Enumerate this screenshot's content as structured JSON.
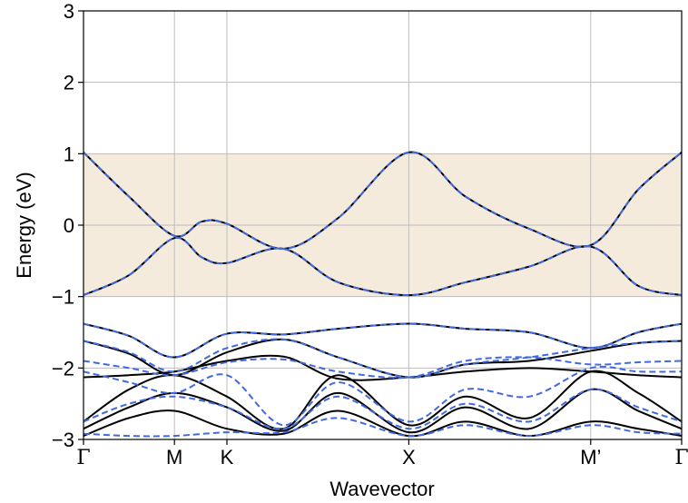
{
  "chart_data": {
    "type": "line",
    "xlabel": "Wavevector",
    "ylabel": "Energy (eV)",
    "ylim": [
      -3,
      3
    ],
    "yticks": [
      "3",
      "2",
      "1",
      "0",
      "−1",
      "−2",
      "−3"
    ],
    "ytick_values": [
      3,
      2,
      1,
      0,
      -1,
      -2,
      -3
    ],
    "high_symmetry_points": [
      {
        "label": "Γ",
        "x": 0.0
      },
      {
        "label": "M",
        "x": 1.0
      },
      {
        "label": "K",
        "x": 1.577
      },
      {
        "label": "X",
        "x": 3.577
      },
      {
        "label": "M’",
        "x": 5.577
      },
      {
        "label": "Γ",
        "x": 6.577
      }
    ],
    "grid": true,
    "shaded_window": {
      "y_min": -1,
      "y_max": 1,
      "color": "#f4ebdd"
    },
    "colors": {
      "solid": "#000000",
      "dashed": "#4169e1",
      "grid": "#bdbdbd"
    },
    "series": [
      {
        "style": "solid",
        "x": [
          0,
          0.5,
          1,
          1.3,
          1.577,
          2.2,
          2.8,
          3.577,
          4.2,
          4.9,
          5.577,
          6.1,
          6.577
        ],
        "values": [
          1.02,
          0.4,
          -0.15,
          0.05,
          0.02,
          -0.33,
          0.1,
          1.02,
          0.4,
          -0.05,
          -0.28,
          0.5,
          1.02
        ]
      },
      {
        "style": "solid",
        "x": [
          0,
          0.5,
          1,
          1.3,
          1.577,
          2.2,
          2.8,
          3.577,
          4.2,
          4.9,
          5.577,
          6.1,
          6.577
        ],
        "values": [
          -0.98,
          -0.7,
          -0.18,
          -0.45,
          -0.53,
          -0.33,
          -0.8,
          -0.98,
          -0.8,
          -0.58,
          -0.3,
          -0.85,
          -0.98
        ]
      },
      {
        "style": "solid",
        "x": [
          0,
          0.5,
          1,
          1.577,
          2.2,
          2.8,
          3.577,
          4.2,
          4.9,
          5.577,
          6.1,
          6.577
        ],
        "values": [
          -1.38,
          -1.55,
          -1.85,
          -1.52,
          -1.53,
          -1.45,
          -1.38,
          -1.45,
          -1.5,
          -1.72,
          -1.5,
          -1.38
        ]
      },
      {
        "style": "solid",
        "x": [
          0,
          0.5,
          1,
          1.577,
          2.2,
          2.8,
          3.577,
          4.2,
          4.9,
          5.577,
          6.1,
          6.577
        ],
        "values": [
          -1.62,
          -1.8,
          -2.1,
          -1.78,
          -1.6,
          -1.85,
          -2.13,
          -1.95,
          -1.9,
          -1.76,
          -1.65,
          -1.62
        ]
      },
      {
        "style": "solid",
        "x": [
          0,
          0.5,
          1,
          1.577,
          2.2,
          2.8,
          3.577,
          4.2,
          4.9,
          5.577,
          6.1,
          6.577
        ],
        "values": [
          -2.13,
          -2.1,
          -2.05,
          -1.9,
          -1.84,
          -2.15,
          -2.13,
          -2.05,
          -2.0,
          -2.05,
          -2.1,
          -2.13
        ]
      },
      {
        "style": "solid",
        "x": [
          0,
          0.5,
          1,
          1.577,
          2.2,
          2.8,
          3.577,
          4.2,
          4.9,
          5.577,
          6.1,
          6.577
        ],
        "values": [
          -2.75,
          -2.3,
          -2.1,
          -2.4,
          -2.85,
          -2.1,
          -2.8,
          -2.4,
          -2.7,
          -2.05,
          -2.35,
          -2.75
        ]
      },
      {
        "style": "solid",
        "x": [
          0,
          0.5,
          1,
          1.577,
          2.2,
          2.8,
          3.577,
          4.2,
          4.9,
          5.577,
          6.1,
          6.577
        ],
        "values": [
          -2.85,
          -2.55,
          -2.35,
          -2.55,
          -2.88,
          -2.35,
          -2.9,
          -2.55,
          -2.85,
          -2.3,
          -2.6,
          -2.85
        ]
      },
      {
        "style": "solid",
        "x": [
          0,
          0.5,
          1,
          1.577,
          2.2,
          2.8,
          3.577,
          4.2,
          4.9,
          5.577,
          6.1,
          6.577
        ],
        "values": [
          -2.95,
          -2.7,
          -2.6,
          -2.85,
          -2.92,
          -2.6,
          -2.95,
          -2.75,
          -2.95,
          -2.75,
          -2.85,
          -2.95
        ]
      },
      {
        "style": "dashed",
        "x": [
          0,
          0.5,
          1,
          1.3,
          1.577,
          2.2,
          2.8,
          3.577,
          4.2,
          4.9,
          5.577,
          6.1,
          6.577
        ],
        "values": [
          1.02,
          0.4,
          -0.15,
          0.05,
          0.02,
          -0.33,
          0.1,
          1.02,
          0.4,
          -0.05,
          -0.28,
          0.5,
          1.02
        ]
      },
      {
        "style": "dashed",
        "x": [
          0,
          0.5,
          1,
          1.3,
          1.577,
          2.2,
          2.8,
          3.577,
          4.2,
          4.9,
          5.577,
          6.1,
          6.577
        ],
        "values": [
          -0.98,
          -0.7,
          -0.18,
          -0.45,
          -0.53,
          -0.33,
          -0.8,
          -0.98,
          -0.8,
          -0.58,
          -0.3,
          -0.85,
          -0.98
        ]
      },
      {
        "style": "dashed",
        "x": [
          0,
          0.5,
          1,
          1.577,
          2.2,
          2.8,
          3.577,
          4.2,
          4.9,
          5.577,
          6.1,
          6.577
        ],
        "values": [
          -1.38,
          -1.55,
          -1.85,
          -1.52,
          -1.53,
          -1.45,
          -1.38,
          -1.45,
          -1.5,
          -1.72,
          -1.5,
          -1.38
        ]
      },
      {
        "style": "dashed",
        "x": [
          0,
          0.5,
          1,
          1.577,
          2.2,
          2.8,
          3.577,
          4.2,
          4.9,
          5.577,
          6.1,
          6.577
        ],
        "values": [
          -1.62,
          -1.78,
          -2.05,
          -1.72,
          -1.6,
          -1.85,
          -2.13,
          -1.95,
          -1.85,
          -1.72,
          -1.65,
          -1.62
        ]
      },
      {
        "style": "dashed",
        "x": [
          0,
          0.5,
          1,
          1.577,
          2.2,
          2.8,
          3.577,
          4.2,
          4.9,
          5.577,
          6.1,
          6.577
        ],
        "values": [
          -1.9,
          -2.0,
          -2.1,
          -1.92,
          -1.88,
          -2.05,
          -2.13,
          -1.9,
          -1.85,
          -1.95,
          -1.92,
          -1.9
        ]
      },
      {
        "style": "dashed",
        "x": [
          0,
          0.5,
          1,
          1.577,
          2.2,
          2.8,
          3.577,
          4.2,
          4.9,
          5.577,
          6.1,
          6.577
        ],
        "values": [
          -2.05,
          -2.2,
          -2.35,
          -2.1,
          -2.8,
          -2.2,
          -2.75,
          -2.3,
          -2.4,
          -2.0,
          -2.05,
          -2.05
        ]
      },
      {
        "style": "dashed",
        "x": [
          0,
          0.5,
          1,
          1.577,
          2.2,
          2.8,
          3.577,
          4.2,
          4.9,
          5.577,
          6.1,
          6.577
        ],
        "values": [
          -2.75,
          -2.5,
          -2.4,
          -2.55,
          -2.85,
          -2.4,
          -2.85,
          -2.5,
          -2.75,
          -2.3,
          -2.55,
          -2.75
        ]
      },
      {
        "style": "dashed",
        "x": [
          0,
          0.5,
          1,
          1.577,
          2.2,
          2.8,
          3.577,
          4.2,
          4.9,
          5.577,
          6.1,
          6.577
        ],
        "values": [
          -2.92,
          -2.95,
          -2.95,
          -2.9,
          -2.9,
          -2.7,
          -2.95,
          -2.8,
          -2.95,
          -2.8,
          -2.9,
          -2.92
        ]
      }
    ]
  }
}
